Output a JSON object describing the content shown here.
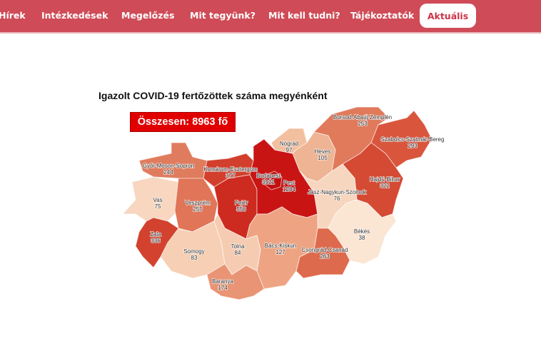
{
  "nav": {
    "items": [
      "Hírek",
      "Intézkedések",
      "Megelőzés",
      "Mit tegyünk?",
      "Mit kell tudni?",
      "Tájékoztatók"
    ],
    "active": "Aktuális",
    "colors": {
      "bar": "#cf4b57",
      "active_text": "#cf3347"
    }
  },
  "map": {
    "title": "Igazolt COVID-19 fertőzöttek száma megyénként",
    "total_label": "Összesen: 8963 fő",
    "counties": [
      {
        "name": "Győr-Moson-Sopron",
        "value": "244",
        "color": "#e07c5e"
      },
      {
        "name": "Vas",
        "value": "75",
        "color": "#f8d6bf"
      },
      {
        "name": "Veszprém",
        "value": "255",
        "color": "#e07557"
      },
      {
        "name": "Komárom-Esztergom",
        "value": "377",
        "color": "#d23f2c"
      },
      {
        "name": "Fejér",
        "value": "556",
        "color": "#cd2b20"
      },
      {
        "name": "Pest",
        "value": "1284",
        "color": "#c91414"
      },
      {
        "name": "Budapest",
        "value": "3921",
        "color": "#c01010"
      },
      {
        "name": "Nógrád",
        "value": "97",
        "color": "#f2bf9f"
      },
      {
        "name": "Heves",
        "value": "105",
        "color": "#efb494"
      },
      {
        "name": "Borsod-Abaúj-Zemplén",
        "value": "253",
        "color": "#e07a5b"
      },
      {
        "name": "Szabolcs-Szatmár-Bereg",
        "value": "293",
        "color": "#d9563d"
      },
      {
        "name": "Hajdú-Bihar",
        "value": "322",
        "color": "#d44a33"
      },
      {
        "name": "Jász-Nagykun-Szolnok",
        "value": "76",
        "color": "#f7d6bf"
      },
      {
        "name": "Békés",
        "value": "38",
        "color": "#fbe5d3"
      },
      {
        "name": "Csongrád-Csanád",
        "value": "263",
        "color": "#dd6a4c"
      },
      {
        "name": "Bács-Kiskun",
        "value": "127",
        "color": "#eea483"
      },
      {
        "name": "Tolna",
        "value": "84",
        "color": "#f5ccb1"
      },
      {
        "name": "Somogy",
        "value": "83",
        "color": "#f6cfb4"
      },
      {
        "name": "Zala",
        "value": "336",
        "color": "#d2422e"
      },
      {
        "name": "Baranya",
        "value": "174",
        "color": "#e99474"
      }
    ]
  }
}
